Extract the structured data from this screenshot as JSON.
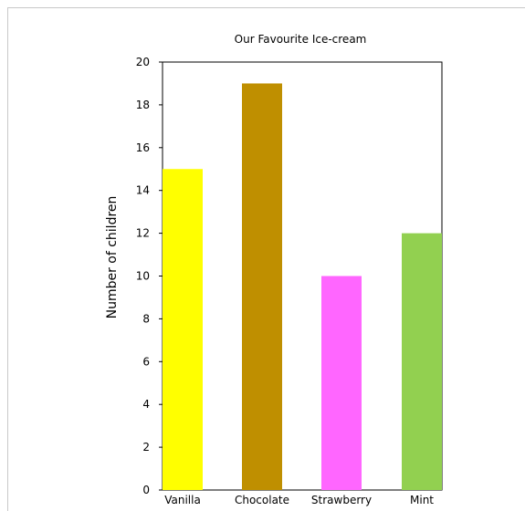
{
  "chart_data": {
    "type": "bar",
    "title": "Our Favourite Ice-cream",
    "xlabel": "",
    "ylabel": "Number of children",
    "categories": [
      "Vanilla",
      "Chocolate",
      "Strawberry",
      "Mint"
    ],
    "values": [
      15,
      19,
      10,
      12
    ],
    "colors": [
      "#ffff00",
      "#bf8f00",
      "#ff66ff",
      "#92d050"
    ],
    "ylim": [
      0,
      20
    ],
    "yticks": [
      0,
      2,
      4,
      6,
      8,
      10,
      12,
      14,
      16,
      18,
      20
    ],
    "grid": false,
    "legend": "none"
  }
}
